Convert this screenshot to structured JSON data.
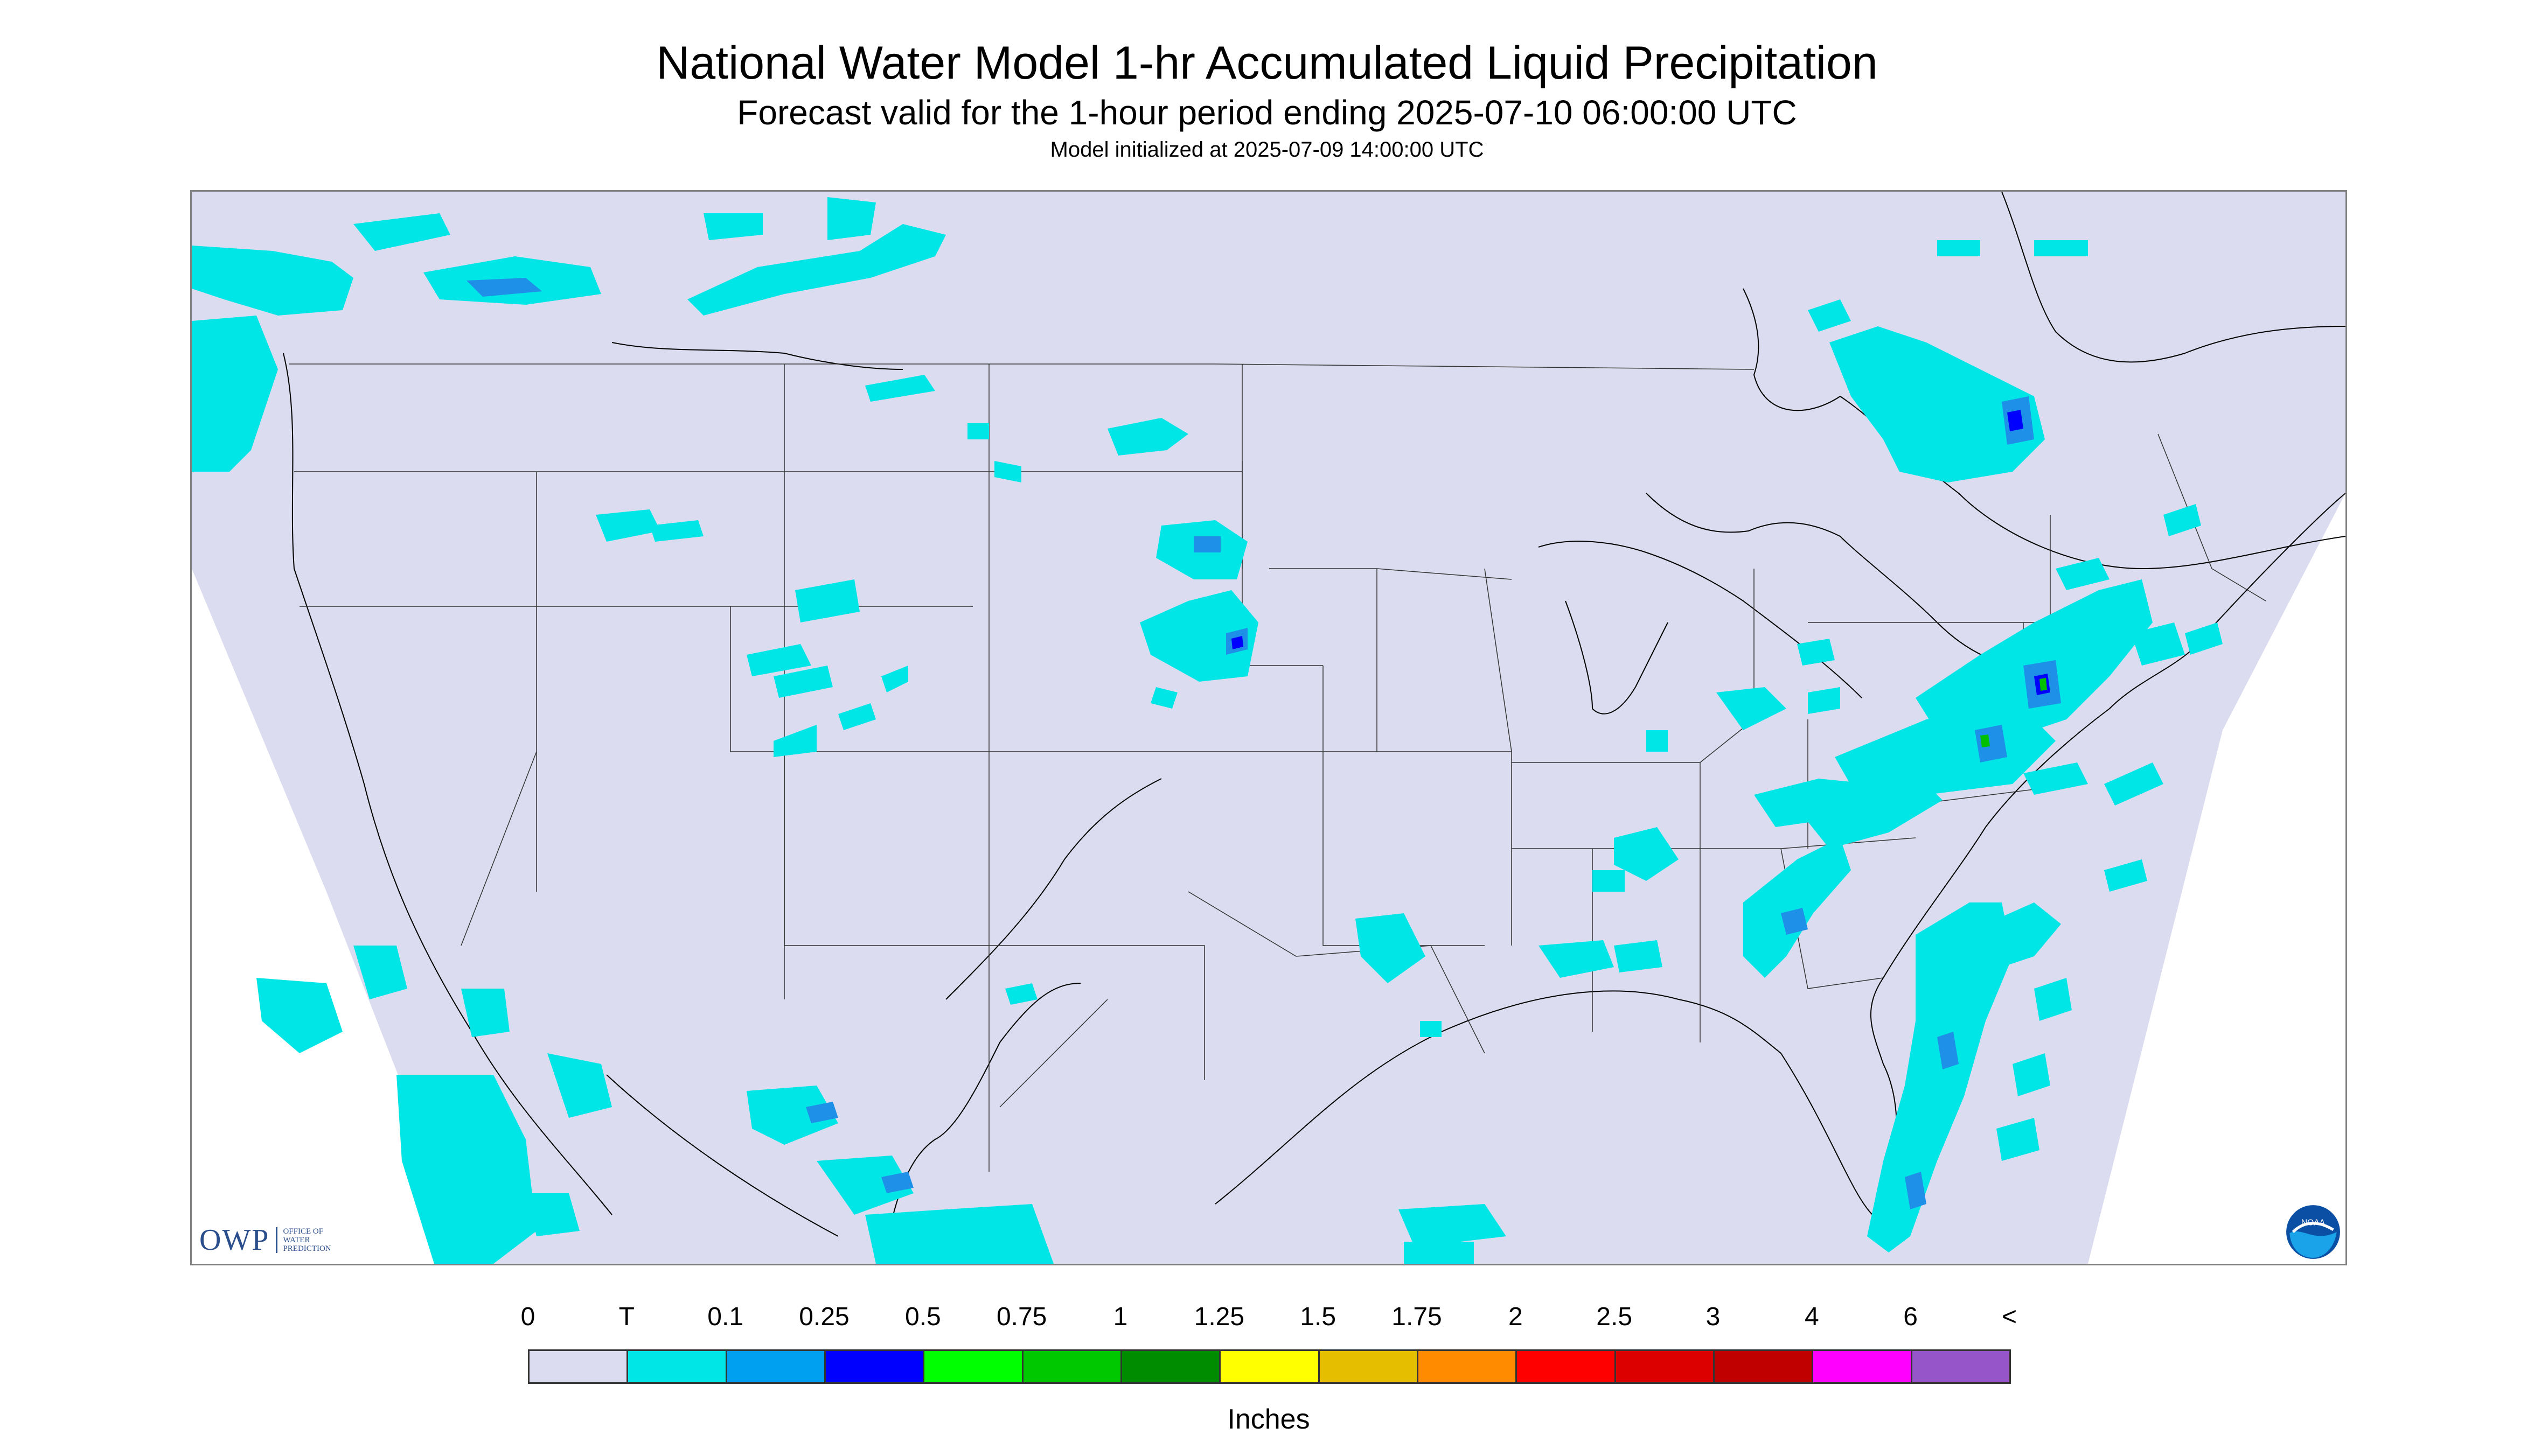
{
  "title": "National Water Model 1-hr Accumulated Liquid Precipitation",
  "subtitle": "Forecast valid for the 1-hour period ending 2025-07-10 06:00:00 UTC",
  "init_line": "Model initialized at 2025-07-09 14:00:00 UTC",
  "logos": {
    "owp_word": "OWP",
    "owp_sub": "OFFICE OF WATER PREDICTION",
    "noaa": "NOAA"
  },
  "colors": {
    "background_land": "#dcdcf0",
    "trace": "#00e5e5",
    "heavy": "#1e90e8",
    "blue": "#0000ff",
    "green": "#00c000",
    "border_line": "#000000"
  },
  "legend": {
    "ticks": [
      "0",
      "T",
      "0.1",
      "0.25",
      "0.5",
      "0.75",
      "1",
      "1.25",
      "1.5",
      "1.75",
      "2",
      "2.5",
      "3",
      "4",
      "6",
      "<"
    ],
    "colors": [
      "#dcdcf0",
      "#00e5e5",
      "#00a0f0",
      "#0000ff",
      "#00ff00",
      "#00c800",
      "#008c00",
      "#ffff00",
      "#e6be00",
      "#ff8c00",
      "#ff0000",
      "#dc0000",
      "#c00000",
      "#ff00ff",
      "#9655c8"
    ],
    "units": "Inches"
  }
}
